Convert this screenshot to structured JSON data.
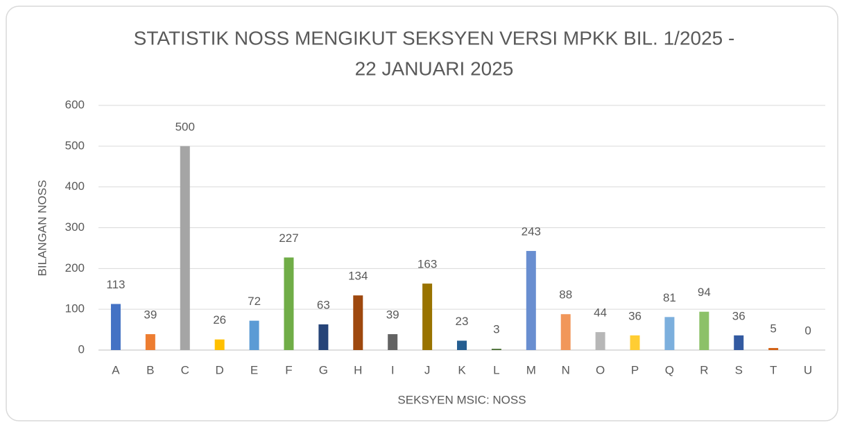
{
  "chart_data": {
    "type": "bar",
    "title": [
      "STATISTIK NOSS MENGIKUT SEKSYEN VERSI MPKK BIL. 1/2025 -",
      "22 JANUARI 2025"
    ],
    "x_label": "SEKSYEN MSIC: NOSS",
    "y_label": "BILANGAN NOSS",
    "categories": [
      "A",
      "B",
      "C",
      "D",
      "E",
      "F",
      "G",
      "H",
      "I",
      "J",
      "K",
      "L",
      "M",
      "N",
      "O",
      "P",
      "Q",
      "R",
      "S",
      "T",
      "U"
    ],
    "values": [
      113,
      39,
      500,
      26,
      72,
      227,
      63,
      134,
      39,
      163,
      23,
      3,
      243,
      88,
      44,
      36,
      81,
      94,
      36,
      5,
      0
    ],
    "colors": [
      "#4472c4",
      "#ed7d31",
      "#a5a5a5",
      "#ffc000",
      "#5b9bd5",
      "#70ad47",
      "#264478",
      "#9e480e",
      "#636363",
      "#997300",
      "#255e91",
      "#43682b",
      "#698ed0",
      "#f1975a",
      "#b7b7b7",
      "#ffcd33",
      "#7cafdd",
      "#8cc168",
      "#335aa1",
      "#d26012",
      "#848484"
    ],
    "ylim": [
      0,
      600
    ],
    "yticks": [
      0,
      100,
      200,
      300,
      400,
      500,
      600
    ],
    "grid": true
  }
}
